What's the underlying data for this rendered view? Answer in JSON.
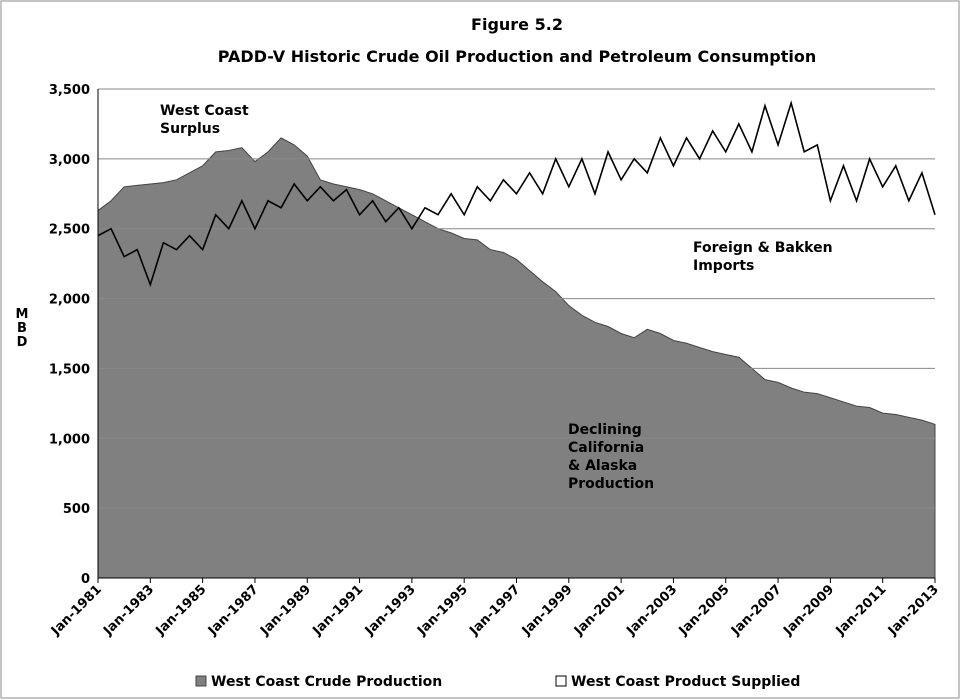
{
  "chart_data": {
    "type": "area_line",
    "title": "Figure 5.2",
    "subtitle": "PADD-V Historic Crude Oil Production and Petroleum Consumption",
    "y_label": "MBD",
    "categories": [
      "Jan-1981",
      null,
      null,
      null,
      "Jan-1983",
      null,
      null,
      null,
      "Jan-1985",
      null,
      null,
      null,
      "Jan-1987",
      null,
      null,
      null,
      "Jan-1989",
      null,
      null,
      null,
      "Jan-1991",
      null,
      null,
      null,
      "Jan-1993",
      null,
      null,
      null,
      "Jan-1995",
      null,
      null,
      null,
      "Jan-1997",
      null,
      null,
      null,
      "Jan-1999",
      null,
      null,
      null,
      "Jan-2001",
      null,
      null,
      null,
      "Jan-2003",
      null,
      null,
      null,
      "Jan-2005",
      null,
      null,
      null,
      "Jan-2007",
      null,
      null,
      null,
      "Jan-2009",
      null,
      null,
      null,
      "Jan-2011",
      null,
      null,
      null,
      "Jan-2013"
    ],
    "series": [
      {
        "name": "West Coast Crude Production",
        "color": "#808080",
        "values": [
          2630,
          2700,
          2800,
          2810,
          2820,
          2830,
          2850,
          2900,
          2950,
          3050,
          3060,
          3080,
          2980,
          3050,
          3150,
          3100,
          3020,
          2850,
          2820,
          2800,
          2780,
          2750,
          2700,
          2650,
          2600,
          2550,
          2500,
          2470,
          2430,
          2420,
          2350,
          2330,
          2280,
          2200,
          2120,
          2050,
          1950,
          1880,
          1830,
          1800,
          1750,
          1720,
          1780,
          1750,
          1700,
          1680,
          1650,
          1620,
          1600,
          1580,
          1500,
          1420,
          1400,
          1360,
          1330,
          1320,
          1290,
          1260,
          1230,
          1220,
          1180,
          1170,
          1150,
          1130,
          1100
        ]
      },
      {
        "name": "West Coast Product Supplied",
        "color": "#000000",
        "values": [
          2450,
          2500,
          2300,
          2350,
          2100,
          2400,
          2350,
          2450,
          2350,
          2600,
          2500,
          2700,
          2500,
          2700,
          2650,
          2820,
          2700,
          2800,
          2700,
          2780,
          2600,
          2700,
          2550,
          2650,
          2500,
          2650,
          2600,
          2750,
          2600,
          2800,
          2700,
          2850,
          2750,
          2900,
          2750,
          3000,
          2800,
          3000,
          2750,
          3050,
          2850,
          3000,
          2900,
          3150,
          2950,
          3150,
          3000,
          3200,
          3050,
          3250,
          3050,
          3380,
          3100,
          3400,
          3050,
          3100,
          2700,
          2950,
          2700,
          3000,
          2800,
          2950,
          2700,
          2900,
          2600
        ]
      }
    ],
    "annotations": [
      [
        "West Coast",
        "Surplus"
      ],
      [
        "Foreign & Bakken",
        "Imports"
      ],
      [
        "Declining",
        "California",
        "& Alaska",
        "Production"
      ]
    ],
    "ylim": [
      0,
      3500
    ],
    "yticks": [
      0,
      {
        "value": 500,
        "label": "500"
      },
      {
        "value": 1000,
        "label": "1,000"
      },
      {
        "value": 1500,
        "label": "1,500"
      },
      {
        "value": 2000,
        "label": "2,000"
      },
      {
        "value": 2500,
        "label": "2,500"
      },
      {
        "value": 3000,
        "label": "3,000"
      },
      {
        "value": 3500,
        "label": "3,500"
      }
    ],
    "grid": true,
    "legend": "bottom"
  }
}
